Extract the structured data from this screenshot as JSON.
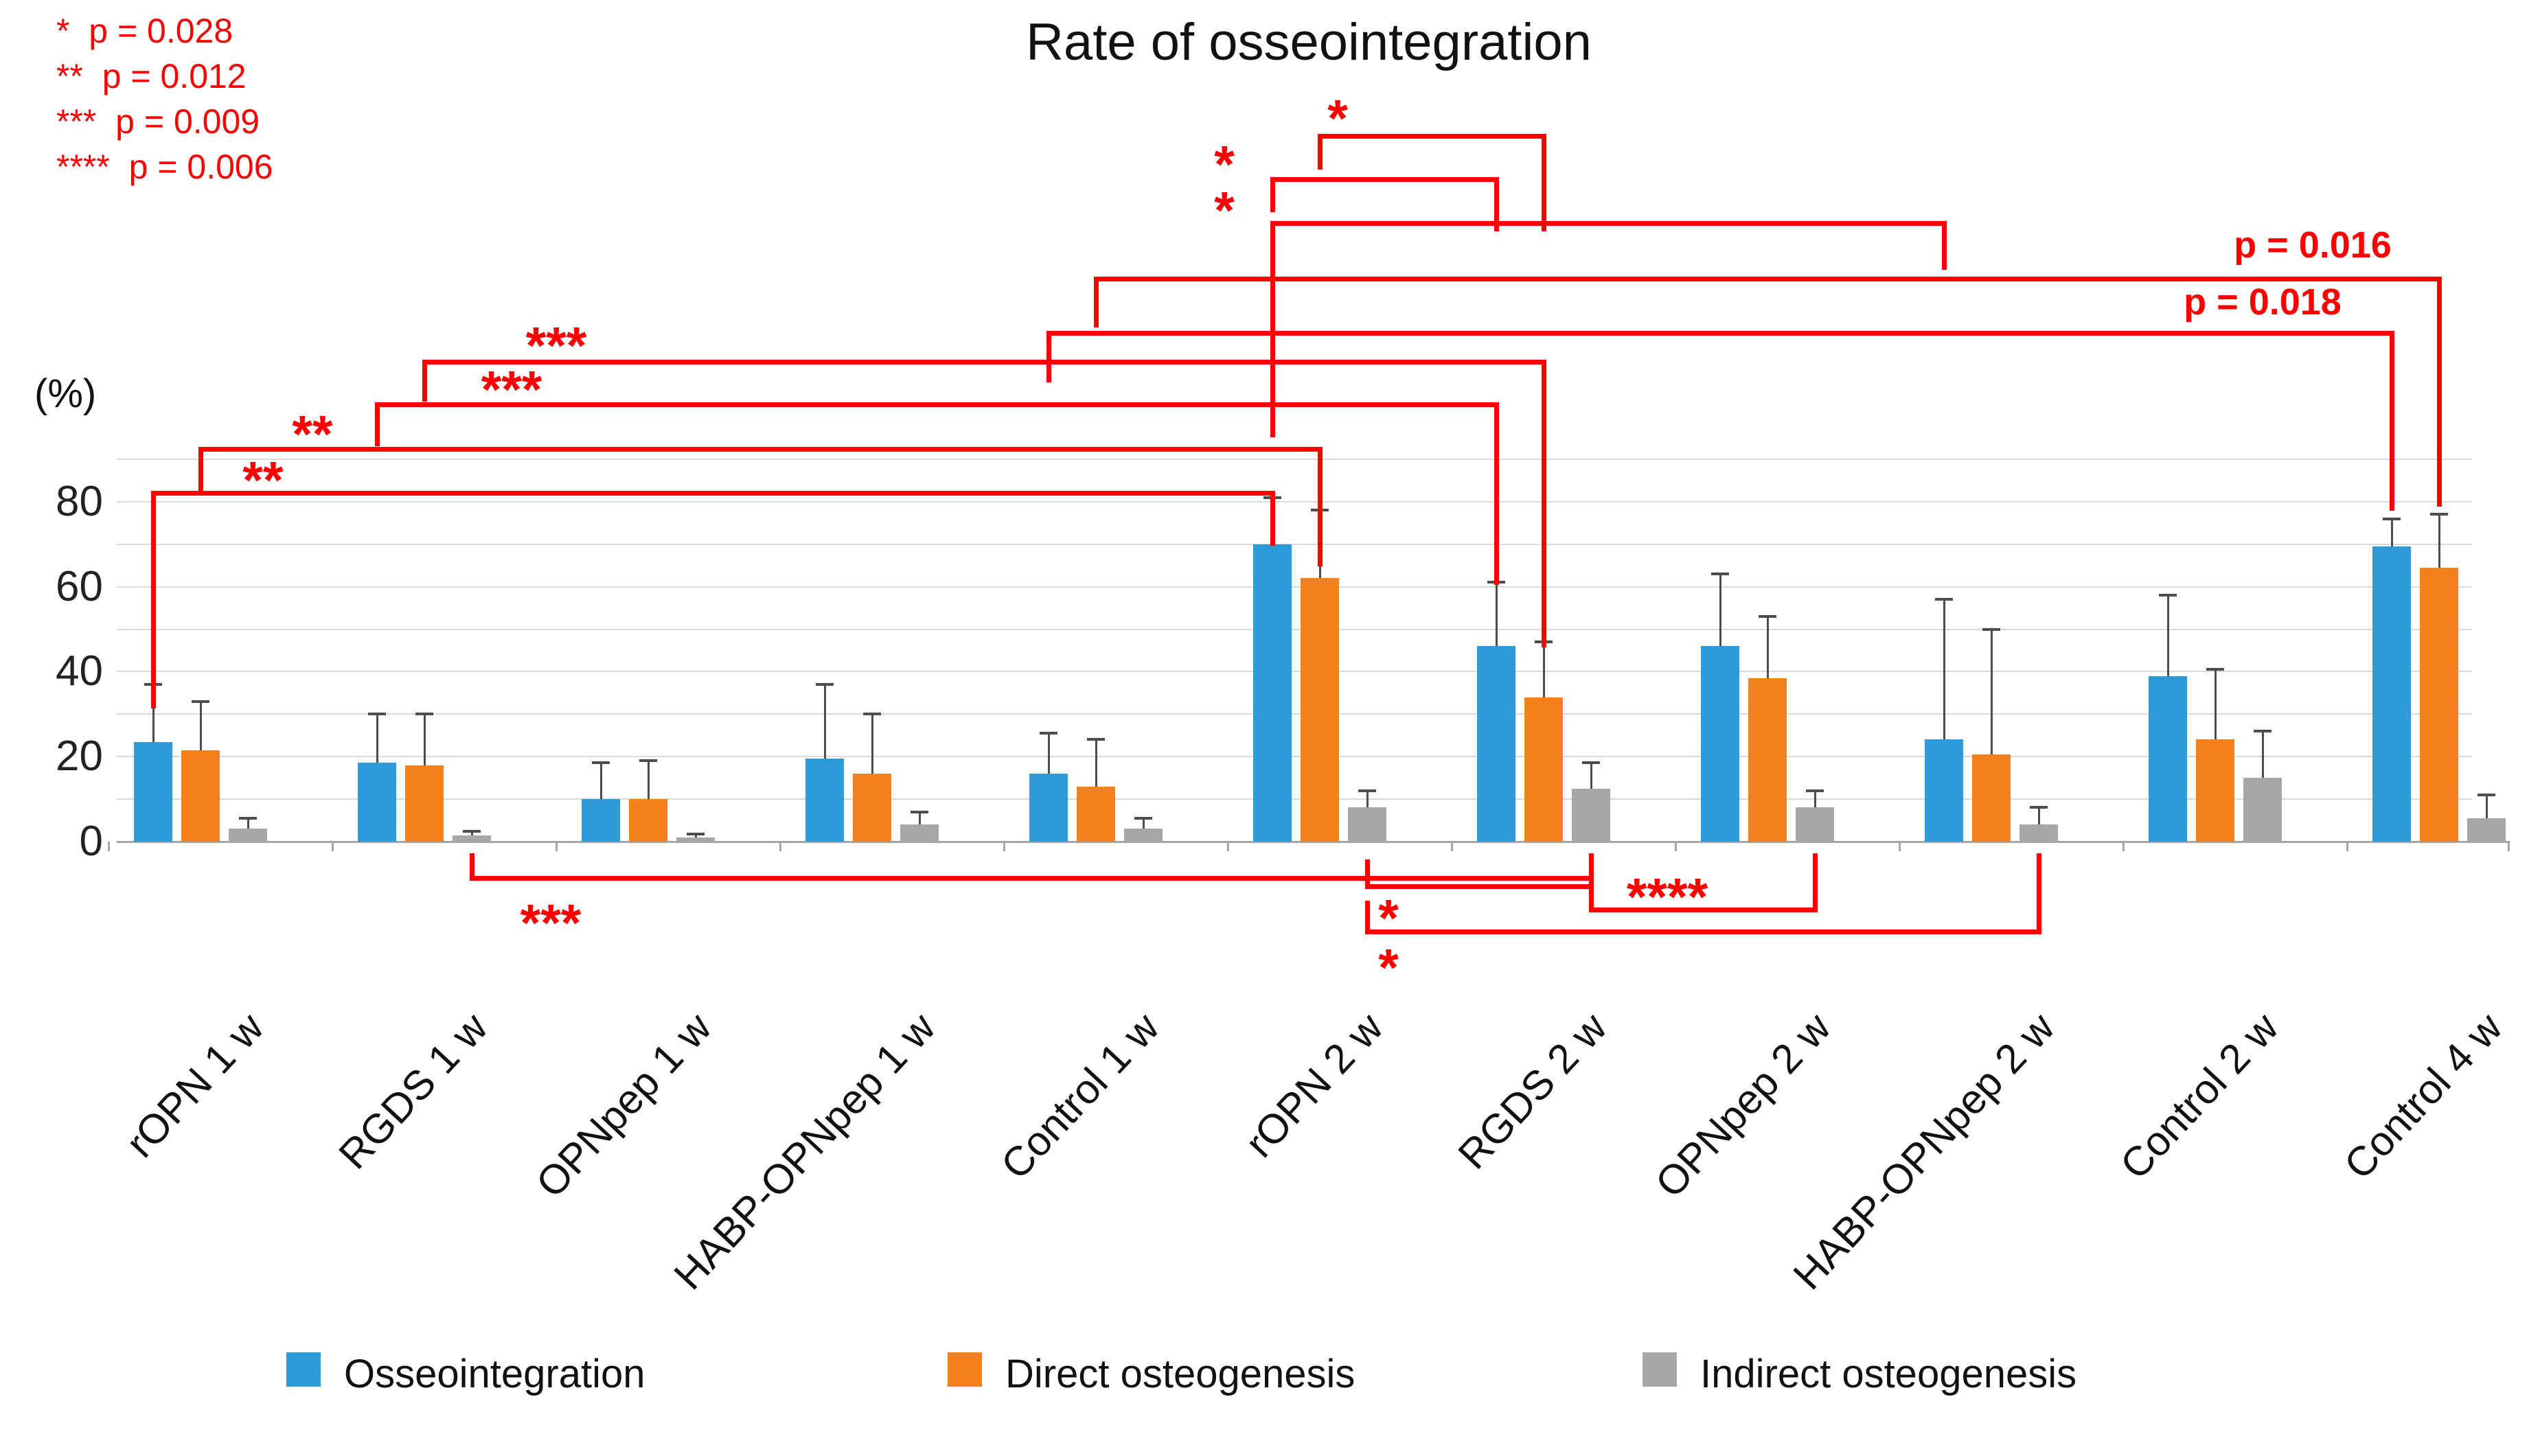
{
  "title": "Rate of osseointegration",
  "chart_data": {
    "type": "bar",
    "title": "Rate of osseointegration",
    "ylabel": "(%)",
    "ylim": [
      0,
      90
    ],
    "yticks": [
      0,
      20,
      40,
      60,
      80
    ],
    "gridlines_every": 10,
    "grid": true,
    "legend_position": "bottom",
    "categories": [
      "rOPN 1 w",
      "RGDS 1 w",
      "OPNpep 1 w",
      "HABP-OPNpep 1 w",
      "Control 1 w",
      "rOPN 2 w",
      "RGDS 2 w",
      "OPNpep 2 w",
      "HABP-OPNpep 2 w",
      "Control 2 w",
      "Control 4 w"
    ],
    "series": [
      {
        "name": "Osseointegration",
        "color": "#2E9BD8",
        "values": [
          23.5,
          18.5,
          10,
          19.5,
          16,
          70,
          46,
          46,
          24,
          39,
          69.5
        ],
        "error_top": [
          37,
          30,
          18.5,
          37,
          25.5,
          81,
          61,
          63,
          57,
          58,
          76
        ]
      },
      {
        "name": "Direct osteogenesis",
        "color": "#F5801E",
        "values": [
          21.5,
          18,
          10,
          16,
          13,
          62,
          34,
          38.5,
          20.5,
          24,
          64.5
        ],
        "error_top": [
          33,
          30,
          19,
          30,
          24,
          78,
          47,
          53,
          50,
          40.5,
          77
        ]
      },
      {
        "name": "Indirect osteogenesis",
        "color": "#A7A7A7",
        "values": [
          3,
          1.5,
          1,
          4,
          3,
          8,
          12.5,
          8,
          4,
          15,
          5.5
        ],
        "error_top": [
          5.5,
          2.5,
          1.8,
          7,
          5.5,
          12,
          18.5,
          12,
          8,
          26,
          11
        ]
      }
    ],
    "significance": {
      "legend_lines": [
        "*  p = 0.028",
        "**  p = 0.012",
        "***  p = 0.009",
        "****  p = 0.006"
      ],
      "legend": [
        {
          "symbol": "*",
          "p": "0.028"
        },
        {
          "symbol": "**",
          "p": "0.012"
        },
        {
          "symbol": "***",
          "p": "0.009"
        },
        {
          "symbol": "****",
          "p": "0.006"
        }
      ],
      "brackets": [
        {
          "label": "**",
          "kind": "stars",
          "from": "rOPN 1 w:Osseointegration",
          "to": "rOPN 2 w:Osseointegration",
          "fg": 0,
          "fs": 0,
          "tg": 5,
          "ts": 0,
          "y": 715,
          "end1": 1025,
          "end2": 788,
          "lx": 383,
          "ly": 690
        },
        {
          "label": "**",
          "kind": "stars",
          "from": "rOPN 1 w:Direct osteogenesis",
          "to": "rOPN 2 w:Direct osteogenesis",
          "fg": 0,
          "fs": 1,
          "tg": 5,
          "ts": 1,
          "y": 651,
          "end1": 708,
          "end2": 818,
          "lx": 455,
          "ly": 623
        },
        {
          "label": "***",
          "kind": "stars",
          "from": "RGDS 1 w:Osseointegration",
          "to": "RGDS 2 w:Osseointegration",
          "fg": 1,
          "fs": 0,
          "tg": 6,
          "ts": 0,
          "y": 586,
          "end1": 643,
          "end2": 845,
          "lx": 745,
          "ly": 558
        },
        {
          "label": "***",
          "kind": "stars",
          "from": "RGDS 1 w:Direct osteogenesis",
          "to": "RGDS 2 w:Direct osteogenesis",
          "fg": 1,
          "fs": 1,
          "tg": 6,
          "ts": 1,
          "y": 524,
          "end1": 578,
          "end2": 936,
          "lx": 810,
          "ly": 494
        },
        {
          "label": "*",
          "kind": "stars",
          "from": "rOPN 2 w:Direct osteogenesis",
          "to": "RGDS 2 w:Direct osteogenesis",
          "fg": 5,
          "fs": 1,
          "tg": 6,
          "ts": 1,
          "y": 195,
          "end1": 240,
          "end2": 330,
          "lx": 1948,
          "ly": 163
        },
        {
          "label": "*",
          "kind": "stars",
          "from": "rOPN 2 w:Osseointegration",
          "to": "RGDS 2 w:Osseointegration",
          "fg": 5,
          "fs": 0,
          "tg": 6,
          "ts": 0,
          "y": 258,
          "end1": 302,
          "end2": 330,
          "lx": 1783,
          "ly": 230
        },
        {
          "label": "*",
          "kind": "stars",
          "from": "rOPN 2 w:Osseointegration",
          "to": "HABP-OPNpep 2 w:Osseointegration",
          "fg": 5,
          "fs": 0,
          "tg": 8,
          "ts": 0,
          "y": 322,
          "end1": 630,
          "end2": 386,
          "lx": 1783,
          "ly": 297
        },
        {
          "label": "p = 0.016",
          "kind": "text",
          "from": "Control 1 w:Direct osteogenesis",
          "to": "Control 4 w:Direct osteogenesis",
          "fg": 4,
          "fs": 1,
          "tg": 10,
          "ts": 1,
          "y": 403,
          "end1": 470,
          "end2": 731,
          "lx": 3368,
          "ly": 357
        },
        {
          "label": "p = 0.018",
          "kind": "text",
          "from": "Control 1 w:Osseointegration",
          "to": "Control 4 w:Osseointegration",
          "fg": 4,
          "fs": 0,
          "tg": 10,
          "ts": 0,
          "y": 482,
          "end1": 550,
          "end2": 737,
          "lx": 3295,
          "ly": 440
        },
        {
          "label": "***",
          "kind": "stars",
          "from": "RGDS 1 w:Indirect osteogenesis",
          "to": "RGDS 2 w:Indirect osteogenesis",
          "fg": 1,
          "fs": 2,
          "tg": 6,
          "ts": 2,
          "y": 1276,
          "end1": 1243,
          "end2": 1243,
          "lx": 802,
          "ly": 1335
        },
        {
          "label": "*",
          "kind": "stars",
          "from": "rOPN 2 w:Indirect osteogenesis",
          "to": "RGDS 2 w:Indirect osteogenesis",
          "fg": 5,
          "fs": 2,
          "tg": 6,
          "ts": 2,
          "y": 1288,
          "end1": 1252,
          "end2": 1252,
          "lx": 2022,
          "ly": 1328
        },
        {
          "label": "****",
          "kind": "stars",
          "from": "RGDS 2 w:Indirect osteogenesis",
          "to": "OPNpep 2 w:Indirect osteogenesis",
          "fg": 6,
          "fs": 2,
          "tg": 7,
          "ts": 2,
          "y": 1322,
          "end1": 1246,
          "end2": 1243,
          "lx": 2428,
          "ly": 1297
        },
        {
          "label": "*",
          "kind": "stars",
          "from": "rOPN 2 w:Indirect osteogenesis",
          "to": "HABP-OPNpep 2 w:Indirect osteogenesis",
          "fg": 5,
          "fs": 2,
          "tg": 8,
          "ts": 2,
          "y": 1354,
          "end1": 1312,
          "end2": 1243,
          "lx": 2022,
          "ly": 1400
        }
      ]
    }
  },
  "legend": {
    "items": [
      {
        "label": "Osseointegration",
        "color": "#2E9BD8",
        "x": 417
      },
      {
        "label": "Direct osteogenesis",
        "color": "#F5801E",
        "x": 1380
      },
      {
        "label": "Indirect osteogenesis",
        "color": "#A7A7A7",
        "x": 2392
      }
    ]
  },
  "colors": {
    "blue": "#2E9BD8",
    "orange": "#F5801E",
    "gray": "#A7A7A7",
    "significance_red": "#FF0000",
    "gridline": "#D9D9D9",
    "axis": "#A6A6A6",
    "error_bar": "#4D4D4D"
  }
}
